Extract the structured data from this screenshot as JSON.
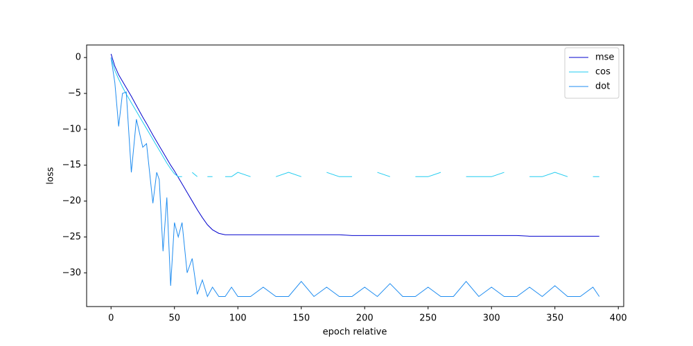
{
  "chart_data": {
    "type": "line",
    "xlabel": "epoch relative",
    "ylabel": "loss",
    "x": [
      0,
      3,
      6,
      9,
      12,
      16,
      20,
      25,
      28,
      33,
      36,
      38,
      41,
      44,
      47,
      50,
      53,
      56,
      60,
      64,
      68,
      72,
      76,
      80,
      85,
      90,
      95,
      100,
      110,
      120,
      130,
      140,
      150,
      160,
      170,
      180,
      190,
      200,
      210,
      220,
      230,
      240,
      250,
      260,
      270,
      280,
      290,
      300,
      310,
      320,
      330,
      340,
      350,
      360,
      370,
      380,
      385
    ],
    "series": [
      {
        "name": "mse",
        "color": "#0000cd",
        "values": [
          0.5,
          -1.2,
          -2.4,
          -3.3,
          -4.2,
          -5.4,
          -6.7,
          -8.3,
          -9.2,
          -10.8,
          -11.7,
          -12.3,
          -13.2,
          -14.1,
          -15.0,
          -15.8,
          -16.7,
          -17.6,
          -18.8,
          -20.0,
          -21.2,
          -22.3,
          -23.3,
          -24.0,
          -24.5,
          -24.7,
          -24.7,
          -24.7,
          -24.7,
          -24.7,
          -24.7,
          -24.7,
          -24.7,
          -24.7,
          -24.7,
          -24.7,
          -24.8,
          -24.8,
          -24.8,
          -24.8,
          -24.8,
          -24.8,
          -24.8,
          -24.8,
          -24.8,
          -24.8,
          -24.8,
          -24.8,
          -24.8,
          -24.8,
          -24.9,
          -24.9,
          -24.9,
          -24.9,
          -24.9,
          -24.9,
          -24.9
        ]
      },
      {
        "name": "cos",
        "color": "#1ecbf0",
        "values": [
          0,
          -1.8,
          -3.0,
          -4.1,
          -5.1,
          -6.3,
          -7.5,
          -9.0,
          -9.9,
          -11.4,
          -12.3,
          -12.9,
          -13.8,
          -14.7,
          -15.5,
          -16.2,
          -16.6,
          -16.6,
          null,
          -16.0,
          -16.6,
          null,
          -16.6,
          -16.6,
          null,
          -16.6,
          -16.6,
          -16.0,
          -16.6,
          null,
          -16.6,
          -16.0,
          -16.6,
          null,
          -16.0,
          -16.6,
          -16.6,
          null,
          -16.0,
          -16.6,
          null,
          -16.6,
          -16.6,
          -16.0,
          null,
          -16.6,
          -16.6,
          -16.6,
          -16.0,
          null,
          -16.6,
          -16.6,
          -16.0,
          -16.6,
          null,
          -16.6,
          -16.6
        ]
      },
      {
        "name": "dot",
        "color": "#1e8cf0",
        "values": [
          0,
          -3.5,
          -9.6,
          -5.0,
          -4.8,
          -16.0,
          -8.6,
          -12.5,
          -12.0,
          -20.3,
          -16.0,
          -17.0,
          -27.0,
          -19.5,
          -31.8,
          -23.0,
          -25.0,
          -23.0,
          -30.0,
          -28.0,
          -33.0,
          -31.0,
          -33.3,
          -32.0,
          -33.3,
          -33.3,
          -32.0,
          -33.3,
          -33.3,
          -32.0,
          -33.3,
          -33.3,
          -31.2,
          -33.3,
          -32.0,
          -33.3,
          -33.3,
          -32.0,
          -33.3,
          -31.5,
          -33.3,
          -33.3,
          -32.0,
          -33.3,
          -33.3,
          -31.2,
          -33.3,
          -32.0,
          -33.3,
          -33.3,
          -32.0,
          -33.3,
          -31.8,
          -33.3,
          -33.3,
          -32.0,
          -33.3
        ]
      }
    ],
    "xlim": [
      -19.25,
      404.25
    ],
    "xticks": [
      0,
      50,
      100,
      150,
      200,
      250,
      300,
      350,
      400
    ],
    "ylim": [
      -34.7,
      1.75
    ],
    "yticks": [
      {
        "value": -30,
        "label": "−30"
      },
      {
        "value": -25,
        "label": "−25"
      },
      {
        "value": -20,
        "label": "−20"
      },
      {
        "value": -15,
        "label": "−15"
      },
      {
        "value": -10,
        "label": "−10"
      },
      {
        "value": -5,
        "label": "−5"
      },
      0
    ],
    "grid": false,
    "legend": "upper right"
  }
}
